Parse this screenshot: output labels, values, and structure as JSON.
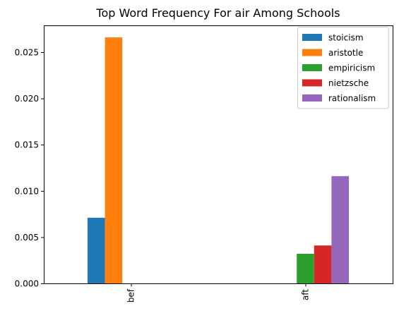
{
  "chart_data": {
    "type": "bar",
    "title": "Top Word Frequency For air Among Schools",
    "xlabel": "",
    "ylabel": "",
    "categories": [
      "bef",
      "aft"
    ],
    "ylim": [
      0,
      0.0279
    ],
    "yticks": [
      "0.000",
      "0.005",
      "0.010",
      "0.015",
      "0.020",
      "0.025"
    ],
    "grid": false,
    "legend_position": "top-right",
    "series": [
      {
        "name": "stoicism",
        "color": "#1f77b4",
        "values": [
          0.0071,
          0
        ]
      },
      {
        "name": "aristotle",
        "color": "#ff7f0e",
        "values": [
          0.0266,
          0
        ]
      },
      {
        "name": "empiricism",
        "color": "#2ca02c",
        "values": [
          0,
          0.0032
        ]
      },
      {
        "name": "nietzsche",
        "color": "#d62728",
        "values": [
          0,
          0.0041
        ]
      },
      {
        "name": "rationalism",
        "color": "#9467bd",
        "values": [
          0,
          0.0116
        ]
      }
    ]
  }
}
